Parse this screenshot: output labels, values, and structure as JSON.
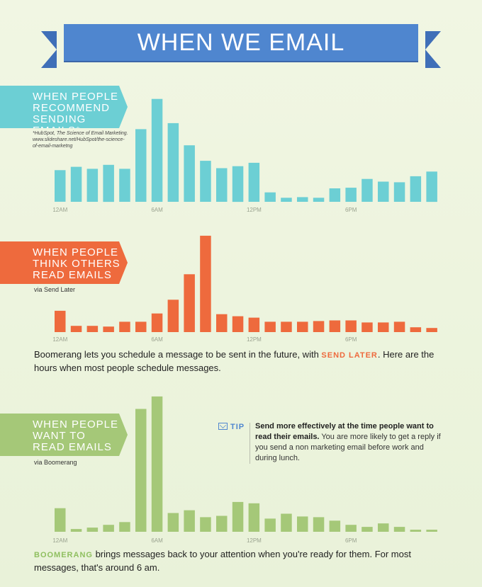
{
  "title": "WHEN WE EMAIL",
  "sections": {
    "recommend": {
      "tag_lines": [
        "WHEN PEOPLE",
        "RECOMMEND",
        "SENDING EMAILS*"
      ],
      "note_line1": "*HubSpot, The Science of Email Marketing.",
      "note_line2": "www.slideshare.net/HubSpot/the-science-",
      "note_line3": "of-email-marketng"
    },
    "think": {
      "tag_lines": [
        "WHEN PEOPLE",
        "THINK OTHERS",
        "READ EMAILS"
      ],
      "via": "via Send Later",
      "desc_before": "Boomerang lets you schedule a message to be sent in the future, with ",
      "desc_highlight": "SEND LATER",
      "desc_after": ". Here are the hours when most people schedule messages."
    },
    "read": {
      "tag_lines": [
        "WHEN PEOPLE",
        "WANT TO",
        "READ EMAILS"
      ],
      "via": "via Boomerang",
      "tip_label": "TIP",
      "tip_bold": "Send more effectively at the time people want to read their emails.",
      "tip_rest": " You are more likely to get a reply if you send a non marketing email before work and during lunch.",
      "desc_highlight": "BOOMERANG",
      "desc_after": " brings messages back to your attention when you're ready for them. For most messages, that's around 6 am."
    }
  },
  "colors": {
    "banner": "#4f86cf",
    "teal": "#6ccfd4",
    "orange": "#ee6a3d",
    "green": "#a5c878"
  },
  "chart_data": [
    {
      "type": "bar",
      "name": "recommend",
      "x_tick_labels": [
        "12AM",
        "6AM",
        "12PM",
        "6PM"
      ],
      "categories": [
        "0",
        "1",
        "2",
        "3",
        "4",
        "5",
        "6",
        "7",
        "8",
        "9",
        "10",
        "11",
        "12",
        "13",
        "14",
        "15",
        "16",
        "17",
        "18",
        "19",
        "20",
        "21",
        "22",
        "23"
      ],
      "values": [
        47,
        52,
        49,
        55,
        49,
        108,
        153,
        117,
        84,
        61,
        50,
        53,
        58,
        14,
        6,
        7,
        6,
        20,
        21,
        34,
        30,
        29,
        38,
        45
      ],
      "ylim": [
        0,
        160
      ]
    },
    {
      "type": "bar",
      "name": "think",
      "x_tick_labels": [
        "12AM",
        "6AM",
        "12PM",
        "6PM"
      ],
      "categories": [
        "0",
        "1",
        "2",
        "3",
        "4",
        "5",
        "6",
        "7",
        "8",
        "9",
        "10",
        "11",
        "12",
        "13",
        "14",
        "15",
        "16",
        "17",
        "18",
        "19",
        "20",
        "21",
        "22",
        "23"
      ],
      "values": [
        31,
        9,
        9,
        8,
        15,
        15,
        27,
        47,
        84,
        140,
        26,
        23,
        21,
        15,
        15,
        15,
        16,
        17,
        17,
        14,
        14,
        15,
        7,
        6
      ],
      "ylim": [
        0,
        145
      ]
    },
    {
      "type": "bar",
      "name": "read",
      "x_tick_labels": [
        "12AM",
        "6AM",
        "12PM",
        "6PM"
      ],
      "categories": [
        "0",
        "1",
        "2",
        "3",
        "4",
        "5",
        "6",
        "7",
        "8",
        "9",
        "10",
        "11",
        "12",
        "13",
        "14",
        "15",
        "16",
        "17",
        "18",
        "19",
        "20",
        "21",
        "22",
        "23"
      ],
      "values": [
        34,
        4,
        6,
        10,
        14,
        177,
        195,
        27,
        31,
        21,
        23,
        43,
        41,
        19,
        26,
        22,
        21,
        16,
        10,
        7,
        12,
        7,
        3,
        3
      ],
      "ylim": [
        0,
        200
      ]
    }
  ]
}
